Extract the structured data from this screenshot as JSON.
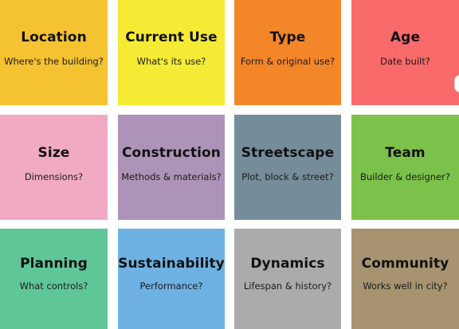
{
  "tiles": [
    {
      "title": "Location",
      "subtitle": "Where's the building?",
      "color": "#F5C232"
    },
    {
      "title": "Current Use",
      "subtitle": "What's its use?",
      "color": "#F5EB34"
    },
    {
      "title": "Type",
      "subtitle": "Form & original use?",
      "color": "#F4862A"
    },
    {
      "title": "Age",
      "subtitle": "Date built?",
      "color": "#F96A6A"
    },
    {
      "title": "Size",
      "subtitle": "Dimensions?",
      "color": "#F0AAC3"
    },
    {
      "title": "Construction",
      "subtitle": "Methods & materials?",
      "color": "#AD93B7"
    },
    {
      "title": "Streetscape",
      "subtitle": "Plot, block & street?",
      "color": "#758C9B"
    },
    {
      "title": "Team",
      "subtitle": "Builder & designer?",
      "color": "#7CC149"
    },
    {
      "title": "Planning",
      "subtitle": "What controls?",
      "color": "#5FC698"
    },
    {
      "title": "Sustainability",
      "subtitle": "Performance?",
      "color": "#6EB1E3"
    },
    {
      "title": "Dynamics",
      "subtitle": "Lifespan & history?",
      "color": "#ABABAB"
    },
    {
      "title": "Community",
      "subtitle": "Works well in city?",
      "color": "#A7936F"
    }
  ]
}
